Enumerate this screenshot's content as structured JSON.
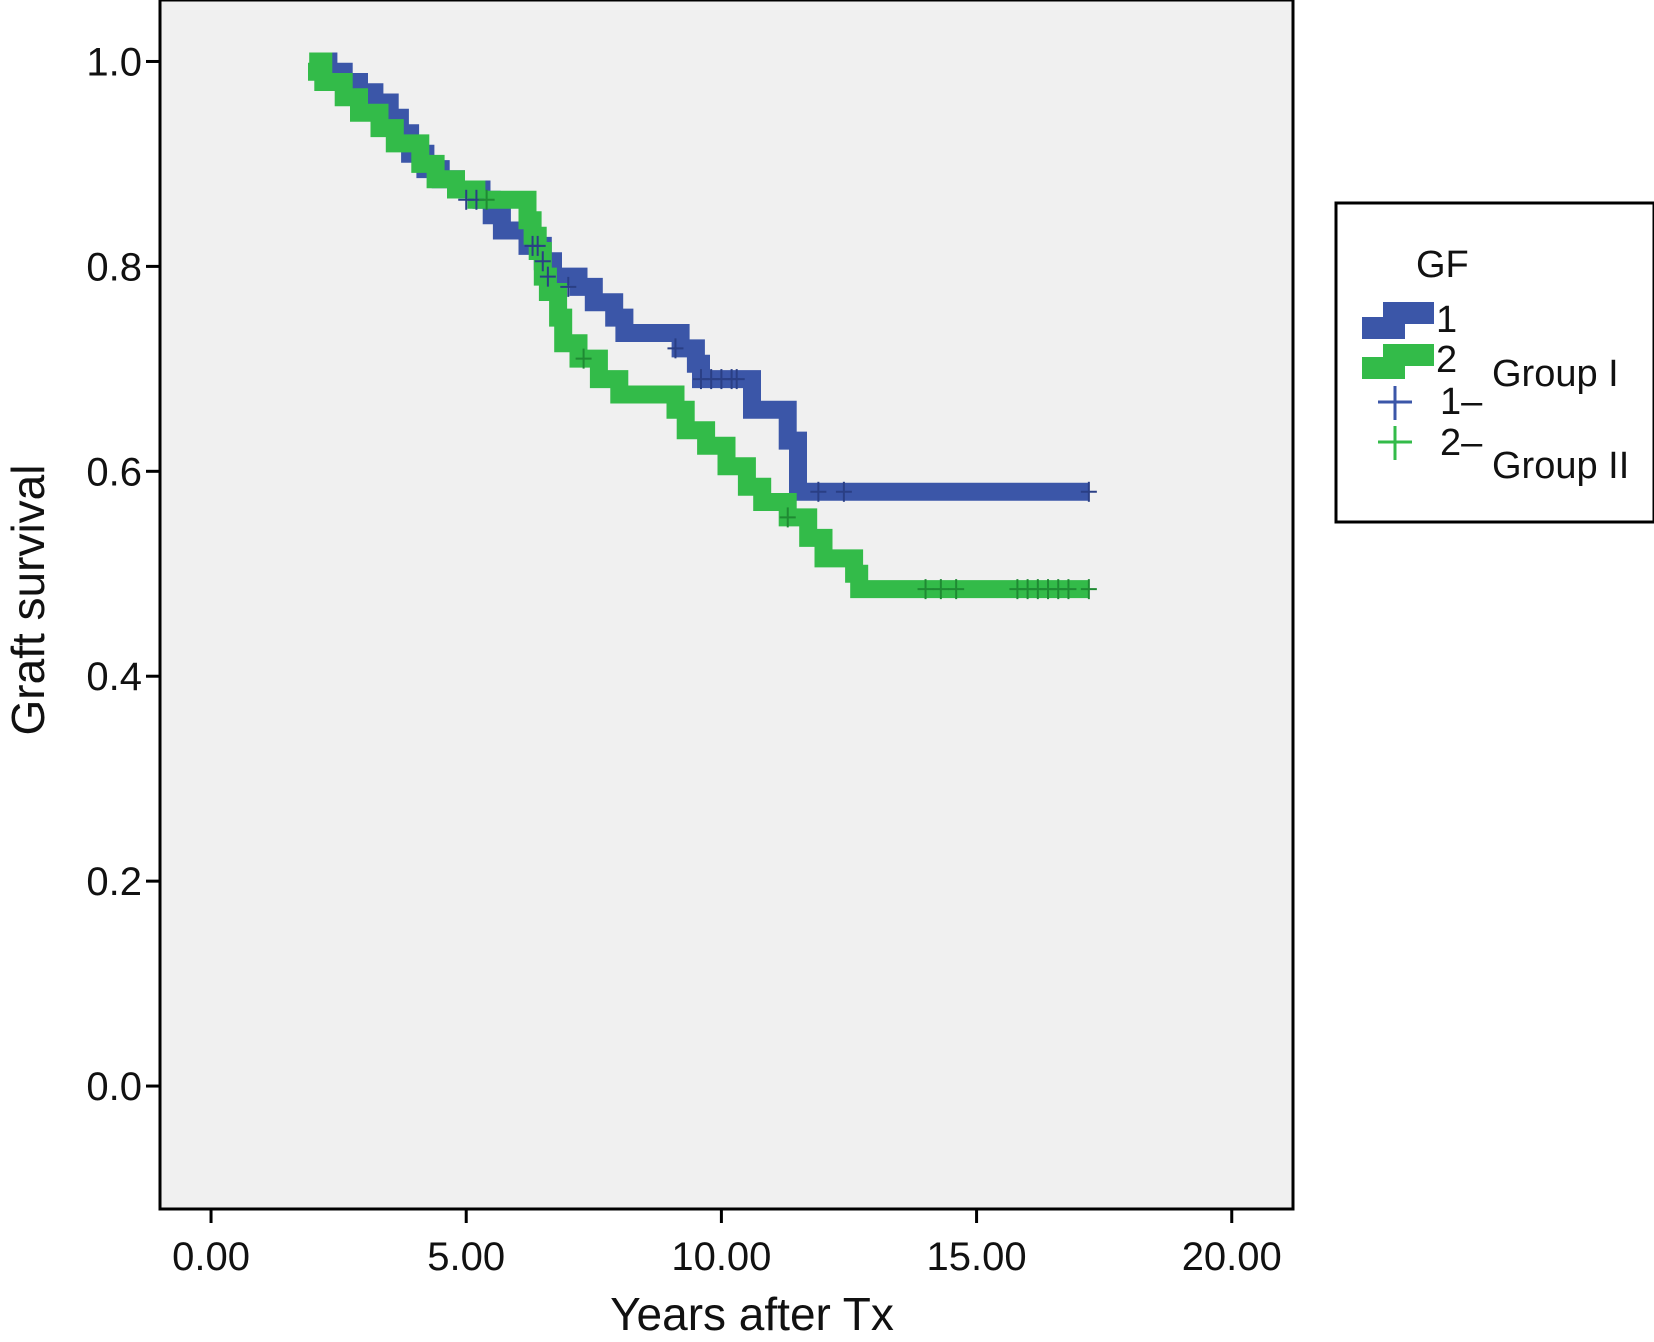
{
  "chart_data": {
    "type": "line",
    "subtype": "kaplan-meier-step",
    "title": "",
    "xlabel": "Years after Tx",
    "ylabel": "Graft survival",
    "xlim": [
      -1.0,
      21.2
    ],
    "ylim": [
      -0.12,
      1.06
    ],
    "xticks": [
      0,
      5,
      10,
      15,
      20
    ],
    "xtick_labels": [
      "0.00",
      "5.00",
      "10.00",
      "15.00",
      "20.00"
    ],
    "yticks": [
      0.0,
      0.2,
      0.4,
      0.6,
      0.8,
      1.0
    ],
    "ytick_labels": [
      "0.0",
      "0.2",
      "0.4",
      "0.6",
      "0.8",
      "1.0"
    ],
    "grid": false,
    "plot_background": "#f0f0f0",
    "legend": {
      "position": "right",
      "title": "GF",
      "entries": [
        {
          "label": "1",
          "kind": "line",
          "color": "#3b56a8"
        },
        {
          "label": "2",
          "kind": "line",
          "color": "#33bb49"
        },
        {
          "label": "1–",
          "kind": "censor",
          "color": "#3b56a8"
        },
        {
          "label": "2–",
          "kind": "censor",
          "color": "#33bb49"
        }
      ],
      "annotations": [
        "Group I",
        "Group II"
      ]
    },
    "series": [
      {
        "name": "1",
        "color": "#3b56a8",
        "steps": [
          [
            2.0,
            1.0
          ],
          [
            2.3,
            0.99
          ],
          [
            2.6,
            0.98
          ],
          [
            2.9,
            0.97
          ],
          [
            3.2,
            0.96
          ],
          [
            3.5,
            0.945
          ],
          [
            3.7,
            0.93
          ],
          [
            3.9,
            0.91
          ],
          [
            4.2,
            0.895
          ],
          [
            4.5,
            0.885
          ],
          [
            4.8,
            0.875
          ],
          [
            5.3,
            0.865
          ],
          [
            5.5,
            0.85
          ],
          [
            5.7,
            0.835
          ],
          [
            6.2,
            0.82
          ],
          [
            6.5,
            0.805
          ],
          [
            6.7,
            0.79
          ],
          [
            7.2,
            0.78
          ],
          [
            7.5,
            0.765
          ],
          [
            7.9,
            0.75
          ],
          [
            8.1,
            0.735
          ],
          [
            9.2,
            0.72
          ],
          [
            9.5,
            0.705
          ],
          [
            9.6,
            0.69
          ],
          [
            10.6,
            0.66
          ],
          [
            11.3,
            0.63
          ],
          [
            11.5,
            0.58
          ],
          [
            17.2,
            0.58
          ]
        ],
        "censored": [
          [
            5.0,
            0.865
          ],
          [
            5.2,
            0.865
          ],
          [
            6.3,
            0.82
          ],
          [
            6.4,
            0.82
          ],
          [
            6.5,
            0.805
          ],
          [
            6.6,
            0.79
          ],
          [
            7.0,
            0.78
          ],
          [
            9.1,
            0.72
          ],
          [
            9.6,
            0.69
          ],
          [
            9.8,
            0.69
          ],
          [
            10.0,
            0.69
          ],
          [
            10.2,
            0.69
          ],
          [
            10.3,
            0.69
          ],
          [
            11.9,
            0.58
          ],
          [
            12.4,
            0.58
          ],
          [
            17.2,
            0.58
          ]
        ]
      },
      {
        "name": "2",
        "color": "#33bb49",
        "steps": [
          [
            1.9,
            0.99
          ],
          [
            2.1,
            1.0
          ],
          [
            2.2,
            0.98
          ],
          [
            2.6,
            0.965
          ],
          [
            2.9,
            0.95
          ],
          [
            3.3,
            0.935
          ],
          [
            3.6,
            0.92
          ],
          [
            4.1,
            0.9
          ],
          [
            4.4,
            0.885
          ],
          [
            4.8,
            0.875
          ],
          [
            5.2,
            0.865
          ],
          [
            6.2,
            0.845
          ],
          [
            6.3,
            0.83
          ],
          [
            6.4,
            0.815
          ],
          [
            6.5,
            0.79
          ],
          [
            6.6,
            0.775
          ],
          [
            6.8,
            0.75
          ],
          [
            6.9,
            0.725
          ],
          [
            7.2,
            0.71
          ],
          [
            7.6,
            0.69
          ],
          [
            8.0,
            0.675
          ],
          [
            9.1,
            0.66
          ],
          [
            9.3,
            0.64
          ],
          [
            9.7,
            0.625
          ],
          [
            10.1,
            0.605
          ],
          [
            10.5,
            0.585
          ],
          [
            10.8,
            0.57
          ],
          [
            11.3,
            0.555
          ],
          [
            11.7,
            0.535
          ],
          [
            12.0,
            0.515
          ],
          [
            12.6,
            0.5
          ],
          [
            12.7,
            0.485
          ],
          [
            17.2,
            0.485
          ]
        ],
        "censored": [
          [
            5.4,
            0.865
          ],
          [
            7.3,
            0.71
          ],
          [
            11.3,
            0.555
          ],
          [
            14.0,
            0.485
          ],
          [
            14.3,
            0.485
          ],
          [
            14.6,
            0.485
          ],
          [
            15.8,
            0.485
          ],
          [
            16.0,
            0.485
          ],
          [
            16.2,
            0.485
          ],
          [
            16.4,
            0.485
          ],
          [
            16.6,
            0.485
          ],
          [
            16.8,
            0.485
          ],
          [
            17.2,
            0.485
          ]
        ]
      }
    ]
  }
}
